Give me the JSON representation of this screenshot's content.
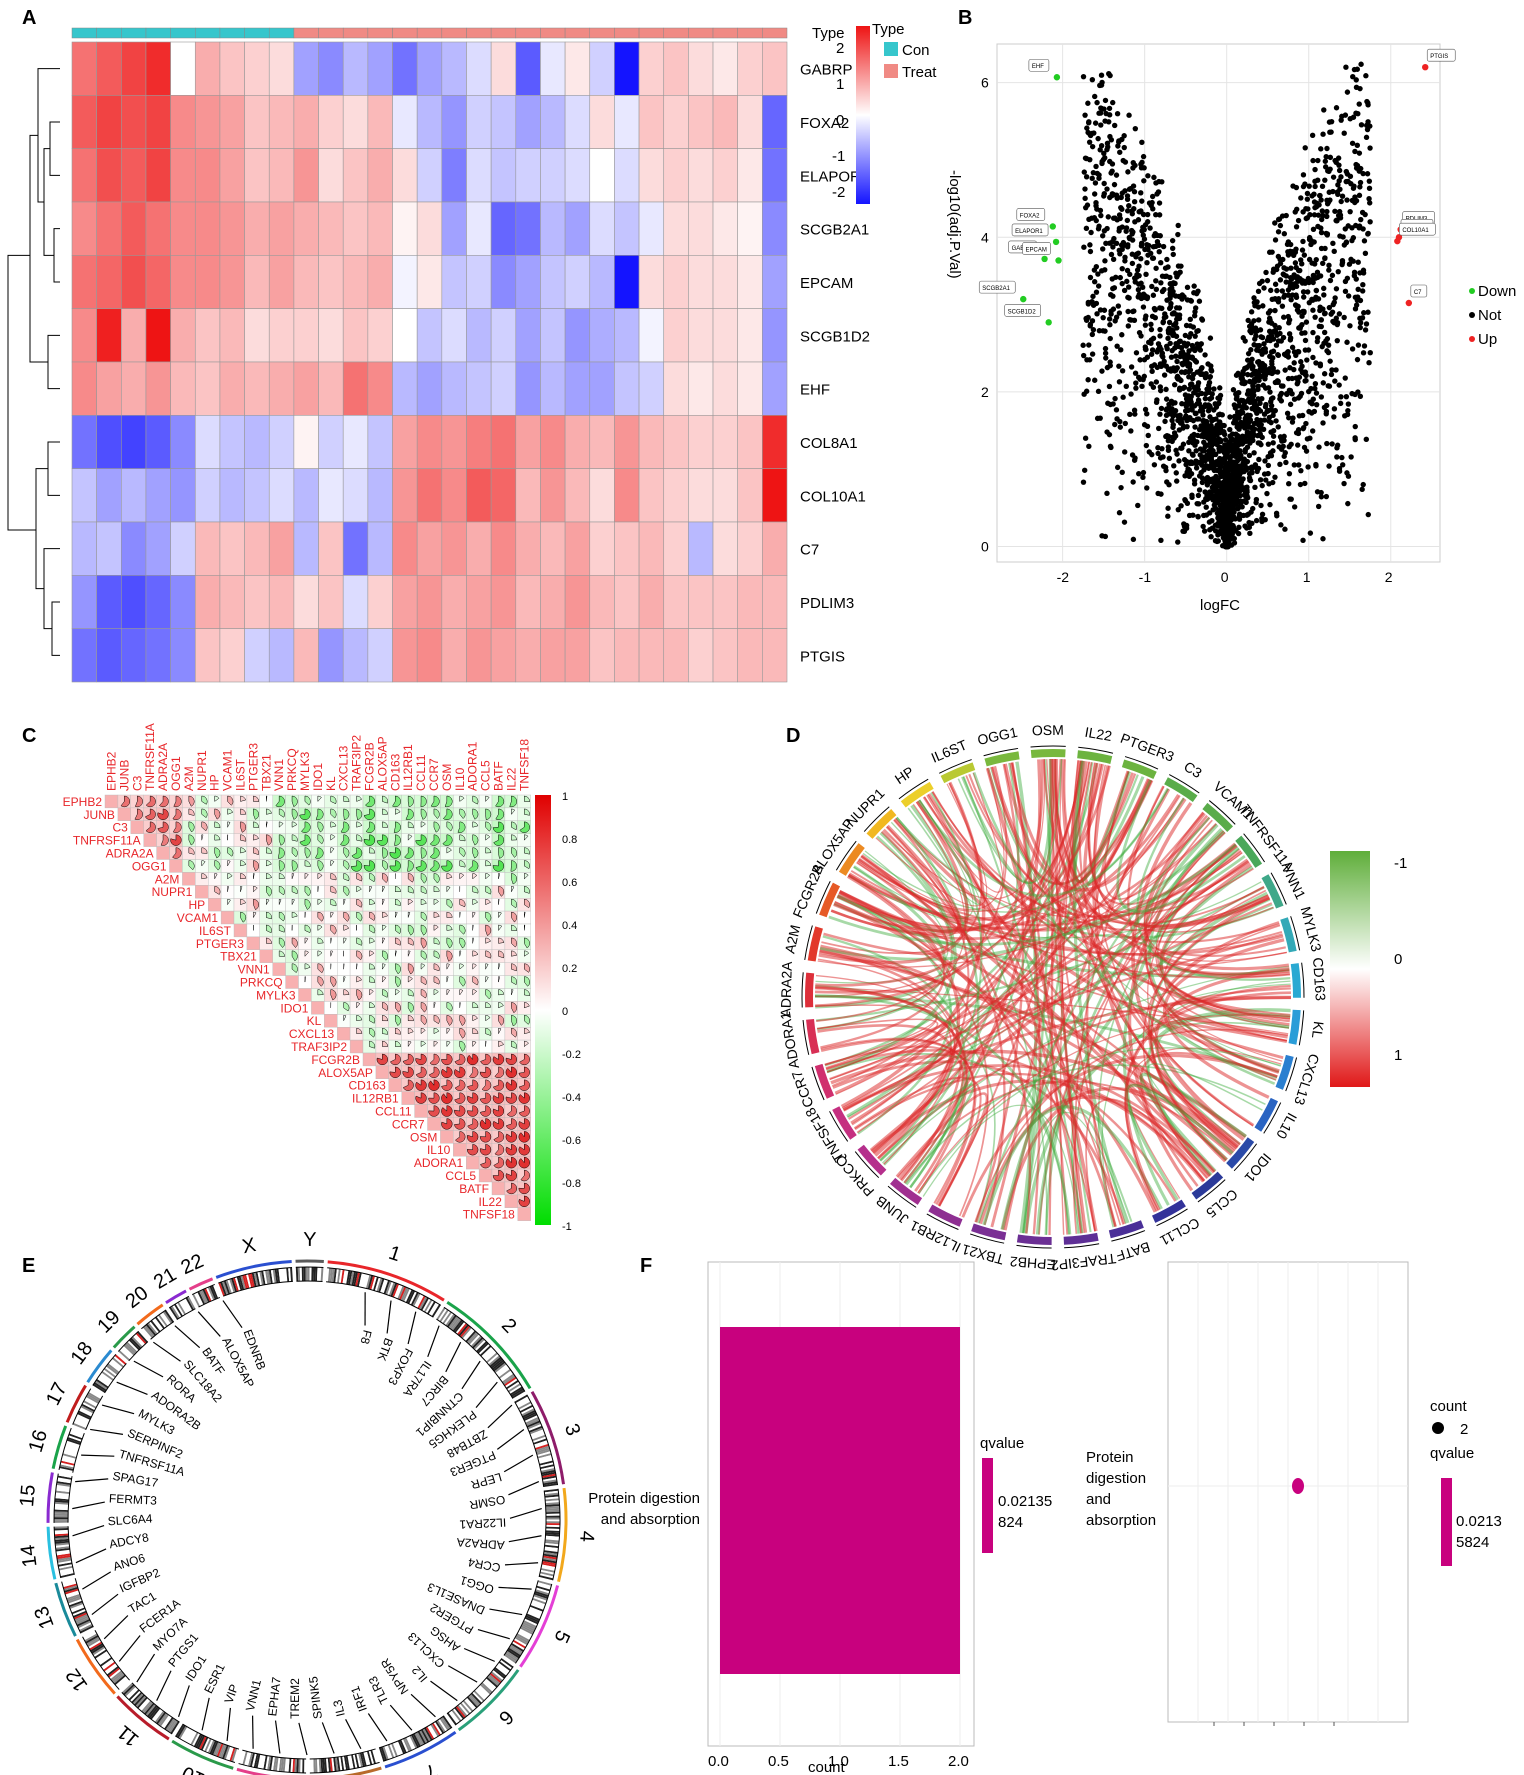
{
  "panels": [
    "A",
    "B",
    "C",
    "D",
    "E",
    "F"
  ],
  "chart_data": [
    {
      "id": "A",
      "type": "heatmap",
      "annotation_label": "Type",
      "legend_title": "Type",
      "groups": [
        {
          "name": "Con",
          "color": "#36c6cc",
          "count": 9
        },
        {
          "name": "Treat",
          "color": "#f08a84",
          "count": 20
        }
      ],
      "scale_ticks": [
        "2",
        "1",
        "0",
        "-1",
        "-2"
      ],
      "rows": [
        "GABRP",
        "FOXA2",
        "ELAPOR1",
        "SCGB2A1",
        "EPCAM",
        "SCGB1D2",
        "EHF",
        "COL8A1",
        "COL10A1",
        "C7",
        "PDLIM3",
        "PTGIS"
      ],
      "values": [
        [
          1.2,
          1.4,
          1.6,
          1.8,
          0.0,
          0.7,
          0.5,
          0.4,
          0.3,
          -0.8,
          -1.0,
          -0.6,
          -0.8,
          -1.2,
          -0.8,
          -0.6,
          -0.3,
          0.3,
          -1.4,
          -0.2,
          0.2,
          -0.4,
          -2.0,
          0.4,
          0.5,
          0.3,
          0.2,
          0.4,
          0.5
        ],
        [
          1.4,
          1.6,
          1.5,
          1.6,
          1.0,
          0.9,
          0.8,
          0.5,
          0.6,
          0.7,
          0.4,
          0.3,
          0.6,
          -0.2,
          -0.6,
          -0.9,
          -0.4,
          -0.5,
          -0.8,
          -0.6,
          -0.3,
          0.3,
          -0.2,
          0.5,
          0.4,
          0.5,
          0.6,
          0.3,
          -1.3
        ],
        [
          1.2,
          1.5,
          1.4,
          1.6,
          1.0,
          1.0,
          0.8,
          0.5,
          0.6,
          0.9,
          0.3,
          0.5,
          0.7,
          0.3,
          -0.4,
          -1.1,
          -0.3,
          -0.5,
          -0.4,
          -0.4,
          -0.3,
          0.0,
          -0.3,
          0.3,
          0.4,
          0.3,
          0.4,
          0.2,
          -1.2
        ],
        [
          1.0,
          1.2,
          1.4,
          1.2,
          1.0,
          1.0,
          0.9,
          0.7,
          0.8,
          0.7,
          0.6,
          0.5,
          0.6,
          0.1,
          0.3,
          -0.8,
          -0.2,
          -1.3,
          -1.2,
          -0.6,
          -0.8,
          -0.3,
          -0.5,
          -0.2,
          0.3,
          0.3,
          0.2,
          0.1,
          -1.0
        ],
        [
          1.2,
          1.3,
          1.5,
          1.3,
          1.0,
          1.0,
          0.9,
          0.6,
          0.8,
          0.6,
          0.5,
          0.6,
          0.7,
          -0.1,
          0.2,
          -0.5,
          -0.4,
          -1.0,
          -0.8,
          -0.5,
          -0.4,
          -0.6,
          -2.0,
          0.3,
          0.4,
          0.3,
          0.3,
          0.2,
          -0.8
        ],
        [
          1.0,
          1.9,
          0.7,
          2.0,
          0.7,
          0.5,
          0.6,
          0.3,
          0.4,
          0.4,
          0.3,
          0.5,
          0.4,
          0.0,
          -0.5,
          -0.3,
          -0.6,
          -0.4,
          -0.8,
          -0.5,
          -0.9,
          -0.7,
          -0.6,
          -0.1,
          0.4,
          0.3,
          0.3,
          0.2,
          -0.9
        ],
        [
          1.0,
          0.8,
          0.7,
          0.9,
          0.6,
          0.5,
          0.7,
          0.6,
          0.7,
          0.8,
          0.6,
          1.2,
          1.0,
          -0.6,
          -0.8,
          -0.6,
          -0.5,
          -0.4,
          -0.9,
          -0.6,
          -0.8,
          -0.8,
          -0.5,
          -0.4,
          0.3,
          0.2,
          0.3,
          0.2,
          -0.8
        ],
        [
          -1.2,
          -1.5,
          -1.6,
          -1.4,
          -1.0,
          -0.3,
          -0.5,
          -0.6,
          -0.4,
          0.1,
          -0.4,
          -0.2,
          -0.5,
          0.8,
          1.0,
          0.9,
          1.1,
          1.2,
          0.8,
          1.0,
          0.7,
          0.6,
          0.9,
          0.6,
          0.5,
          0.4,
          0.4,
          0.5,
          1.8
        ],
        [
          -0.5,
          -0.8,
          -0.6,
          -0.8,
          -0.9,
          -0.4,
          -0.6,
          -0.5,
          -0.3,
          -0.6,
          -0.2,
          -0.3,
          -0.6,
          0.9,
          1.2,
          1.0,
          1.4,
          1.3,
          0.6,
          0.9,
          0.6,
          0.3,
          1.0,
          0.5,
          0.4,
          0.3,
          0.3,
          0.5,
          2.0
        ],
        [
          -0.6,
          -0.5,
          -1.0,
          -0.8,
          -0.4,
          0.6,
          0.5,
          0.6,
          0.8,
          -0.6,
          0.5,
          -1.2,
          -0.6,
          1.0,
          0.8,
          0.9,
          0.7,
          1.0,
          0.7,
          0.6,
          0.8,
          0.4,
          0.5,
          0.6,
          0.4,
          -0.6,
          0.3,
          0.4,
          0.7
        ],
        [
          -0.9,
          -1.4,
          -1.5,
          -1.3,
          -1.0,
          0.7,
          0.6,
          0.5,
          0.6,
          0.3,
          0.5,
          -0.3,
          0.4,
          0.8,
          0.9,
          0.7,
          0.8,
          0.9,
          0.6,
          0.7,
          0.9,
          0.6,
          0.5,
          0.7,
          0.5,
          0.5,
          0.5,
          0.6,
          0.6
        ],
        [
          -1.2,
          -1.4,
          -1.3,
          -1.2,
          -1.0,
          0.5,
          0.4,
          -0.4,
          -0.6,
          0.6,
          -0.9,
          -0.6,
          -0.4,
          0.9,
          1.0,
          0.7,
          0.9,
          0.8,
          0.7,
          0.8,
          0.8,
          0.5,
          0.6,
          0.6,
          0.6,
          0.4,
          0.5,
          0.6,
          0.6
        ]
      ]
    },
    {
      "id": "B",
      "type": "scatter",
      "xlabel": "logFC",
      "ylabel": "-log10(adj.P.Val)",
      "xlim": [
        -2.8,
        2.6
      ],
      "ylim": [
        -0.2,
        6.5
      ],
      "xticks": [
        "-2",
        "-1",
        "0",
        "1",
        "2"
      ],
      "yticks": [
        "0",
        "2",
        "4",
        "6"
      ],
      "legend": [
        {
          "name": "Down",
          "color": "#22cc22"
        },
        {
          "name": "Not",
          "color": "#000000"
        },
        {
          "name": "Up",
          "color": "#ee2222"
        }
      ],
      "points_note": "Not",
      "labeled_points": [
        {
          "label": "EHF",
          "x": -2.07,
          "y": 6.07,
          "class": "Down"
        },
        {
          "label": "FOXA2",
          "x": -2.12,
          "y": 4.14,
          "class": "Down"
        },
        {
          "label": "ELAPOR1",
          "x": -2.08,
          "y": 3.94,
          "class": "Down"
        },
        {
          "label": "GABRP",
          "x": -2.22,
          "y": 3.72,
          "class": "Down"
        },
        {
          "label": "EPCAM",
          "x": -2.05,
          "y": 3.7,
          "class": "Down"
        },
        {
          "label": "SCGB2A1",
          "x": -2.48,
          "y": 3.2,
          "class": "Down"
        },
        {
          "label": "SCGB1D2",
          "x": -2.17,
          "y": 2.9,
          "class": "Down"
        },
        {
          "label": "PTGIS",
          "x": 2.42,
          "y": 6.2,
          "class": "Up"
        },
        {
          "label": "PDLIM3",
          "x": 2.12,
          "y": 4.1,
          "class": "Up"
        },
        {
          "label": "COL8A1",
          "x": 2.1,
          "y": 4.0,
          "class": "Up"
        },
        {
          "label": "COL10A1",
          "x": 2.08,
          "y": 3.95,
          "class": "Up"
        },
        {
          "label": "C7",
          "x": 2.22,
          "y": 3.15,
          "class": "Up"
        }
      ]
    },
    {
      "id": "C",
      "type": "heatmap",
      "genes": [
        "EPHB2",
        "JUNB",
        "C3",
        "TNFRSF11A",
        "ADRA2A",
        "OGG1",
        "A2M",
        "NUPR1",
        "HP",
        "VCAM1",
        "IL6ST",
        "PTGER3",
        "TBX21",
        "VNN1",
        "PRKCQ",
        "MYLK3",
        "IDO1",
        "KL",
        "CXCL13",
        "TRAF3IP2",
        "FCGR2B",
        "ALOX5AP",
        "CD163",
        "IL12RB1",
        "CCL11",
        "CCR7",
        "OSM",
        "IL10",
        "ADORA1",
        "CCL5",
        "BATF",
        "IL22",
        "TNFSF18"
      ],
      "scale_ticks": [
        "1",
        "0.8",
        "0.6",
        "0.4",
        "0.2",
        "0",
        "-0.2",
        "-0.4",
        "-0.6",
        "-0.8",
        "-1"
      ],
      "strong_positive_region": "FCGR2B..IL10",
      "negative_region": "C3..OGG1 vs KL..OSM"
    },
    {
      "id": "D",
      "type": "chord",
      "genes": [
        "OGG1",
        "OSM",
        "IL22",
        "PTGER3",
        "C3",
        "VCAM1",
        "TNFRSF11A",
        "VNN1",
        "MYLK3",
        "CD163",
        "KL",
        "CXCL13",
        "IL10",
        "IDO1",
        "CCL5",
        "CCL11",
        "BATF",
        "TRAF3IP2",
        "EPHB2",
        "TBX21",
        "IL12RB1",
        "JUNB",
        "PRKCQ",
        "TNFSF18",
        "CCR7",
        "ADORA1",
        "ADRA2A",
        "A2M",
        "FCGR2B",
        "ALOX5AP",
        "NUPR1",
        "HP",
        "IL6ST"
      ],
      "scale_ticks": [
        "-1",
        "0",
        "1"
      ]
    },
    {
      "id": "E",
      "type": "circos",
      "chromosomes": [
        "1",
        "2",
        "3",
        "4",
        "5",
        "6",
        "7",
        "8",
        "9",
        "10",
        "11",
        "12",
        "13",
        "14",
        "15",
        "16",
        "17",
        "18",
        "19",
        "20",
        "21",
        "22",
        "X",
        "Y"
      ],
      "gene_labels": [
        "F8",
        "BTK",
        "FOXP3",
        "IL17RA",
        "BIRC7",
        "CTNNBIP1",
        "PLEKHG5",
        "ZBTB48",
        "PTGER3",
        "LEPR",
        "OSMR",
        "IL22RA1",
        "ADRA2A",
        "CCR4",
        "OGG1",
        "DNASE1L3",
        "PTGER2",
        "AHSG",
        "CXCL13",
        "IL2",
        "NPY5R",
        "TLR3",
        "IRF1",
        "IL3",
        "SPINK5",
        "TREM2",
        "EPHA7",
        "VNN1",
        "VIP",
        "ESR1",
        "IDO1",
        "PTGS1",
        "MYO7A",
        "FCER1A",
        "TAC1",
        "IGFBP2",
        "ANO6",
        "ADCY8",
        "SLC6A4",
        "FERMT3",
        "SPAG17",
        "TNFRSF11A",
        "SERPINF2",
        "MYLK3",
        "ADORA2B",
        "RORA",
        "SLC18A2",
        "BATF",
        "ALOX5AP",
        "EDNRB"
      ]
    },
    {
      "id": "F",
      "type": "bar",
      "categories": [
        "Protein digestion\nand absorption"
      ],
      "values": [
        2
      ],
      "xlabel": "count",
      "xticks": [
        "0.0",
        "0.5",
        "1.0",
        "1.5",
        "2.0"
      ],
      "legend_title": "qvalue",
      "legend_value": "0.02135\n824"
    },
    {
      "id": "F2",
      "type": "scatter",
      "categories": [
        "Protein\ndigestion\nand\nabsorption"
      ],
      "count_legend_title": "count",
      "count_legend_value": "2",
      "legend_title": "qvalue",
      "legend_value": "0.0213\n5824"
    }
  ],
  "colors": {
    "magenta": "#c8017e",
    "red": "#e8262a",
    "green": "#22cc22",
    "blue": "#1a1aff"
  }
}
